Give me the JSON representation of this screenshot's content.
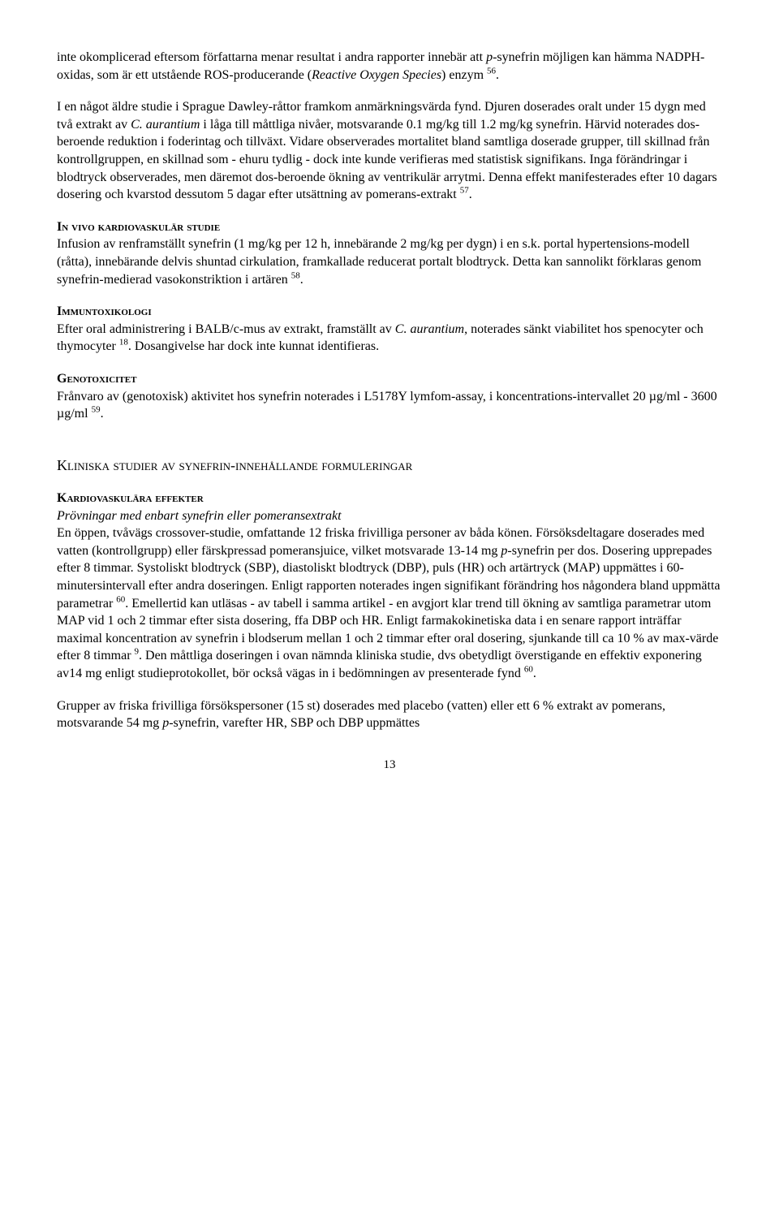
{
  "para_intro": "inte okomplicerad eftersom författarna menar resultat i andra rapporter innebär att p-synefrin möjligen kan hämma NADPH-oxidas, som är ett utstående ROS-producerande (Reactive Oxygen Species) enzym 56.",
  "para_study": "I en något äldre studie i Sprague Dawley-råttor framkom anmärkningsvärda fynd. Djuren doserades oralt under 15 dygn med två extrakt av C. aurantium i låga till måttliga nivåer, motsvarande 0.1 mg/kg till 1.2 mg/kg synefrin. Härvid noterades dos-beroende reduktion i foderintag och tillväxt. Vidare observerades mortalitet bland samtliga doserade grupper, till skillnad från kontrollgruppen, en skillnad som - ehuru tydlig - dock inte kunde verifieras med statistisk signifikans. Inga förändringar i blodtryck observerades, men däremot dos-beroende ökning av ventrikulär arrytmi. Denna effekt manifesterades efter 10 dagars dosering och kvarstod dessutom 5 dagar efter utsättning av pomerans-extrakt 57.",
  "invivo": {
    "heading": "In vivo kardiovaskulär studie",
    "body": "Infusion av renframställt synefrin (1 mg/kg per 12 h, innebärande 2 mg/kg per dygn) i en s.k. portal hypertensions-modell (råtta), innebärande delvis shuntad cirkulation, framkallade reducerat portalt blodtryck. Detta kan sannolikt förklaras genom synefrin-medierad vasokonstriktion i artären 58."
  },
  "immun": {
    "heading": "Immuntoxikologi",
    "body": "Efter oral administrering i BALB/c-mus av extrakt, framställt av C. aurantium, noterades sänkt viabilitet hos spenocyter och thymocyter 18. Dosangivelse har dock inte kunnat identifieras."
  },
  "geno": {
    "heading": "Genotoxicitet",
    "body": "Frånvaro av (genotoxisk) aktivitet hos synefrin noterades i L5178Y lymfom-assay, i koncentrations-intervallet 20 µg/ml - 3600 µg/ml 59."
  },
  "major_heading": "Kliniska studier av synefrin-innehållande formuleringar",
  "kardio": {
    "heading": "Kardiovaskulära effekter",
    "subheading": "Prövningar med enbart synefrin eller pomeransextrakt",
    "body": "En öppen, tvåvägs crossover-studie, omfattande 12 friska frivilliga personer av båda könen. Försöksdeltagare doserades med vatten (kontrollgrupp) eller färskpressad pomeransjuice, vilket motsvarade 13-14 mg p-synefrin per dos. Dosering upprepades efter 8 timmar. Systoliskt blodtryck (SBP), diastoliskt blodtryck (DBP), puls (HR) och artärtryck (MAP) uppmättes i 60-minutersintervall efter andra doseringen. Enligt rapporten noterades ingen signifikant förändring hos någondera bland uppmätta parametrar 60. Emellertid kan utläsas - av tabell i samma artikel - en avgjort klar trend till ökning av samtliga parametrar utom MAP vid 1 och 2 timmar efter sista dosering, ffa DBP och HR. Enligt farmakokinetiska data i en senare rapport inträffar maximal koncentration av synefrin i blodserum mellan 1 och 2 timmar efter oral dosering, sjunkande till ca 10 % av max-värde efter 8 timmar 9. Den måttliga doseringen i ovan nämnda kliniska studie, dvs obetydligt överstigande en effektiv exponering av14 mg enligt studieprotokollet, bör också vägas in i bedömningen av presenterade fynd 60."
  },
  "para_last": "Grupper av friska frivilliga försökspersoner (15 st) doserades med placebo (vatten) eller ett 6 % extrakt av pomerans, motsvarande 54 mg p-synefrin, varefter HR, SBP och DBP uppmättes",
  "page_number": "13"
}
